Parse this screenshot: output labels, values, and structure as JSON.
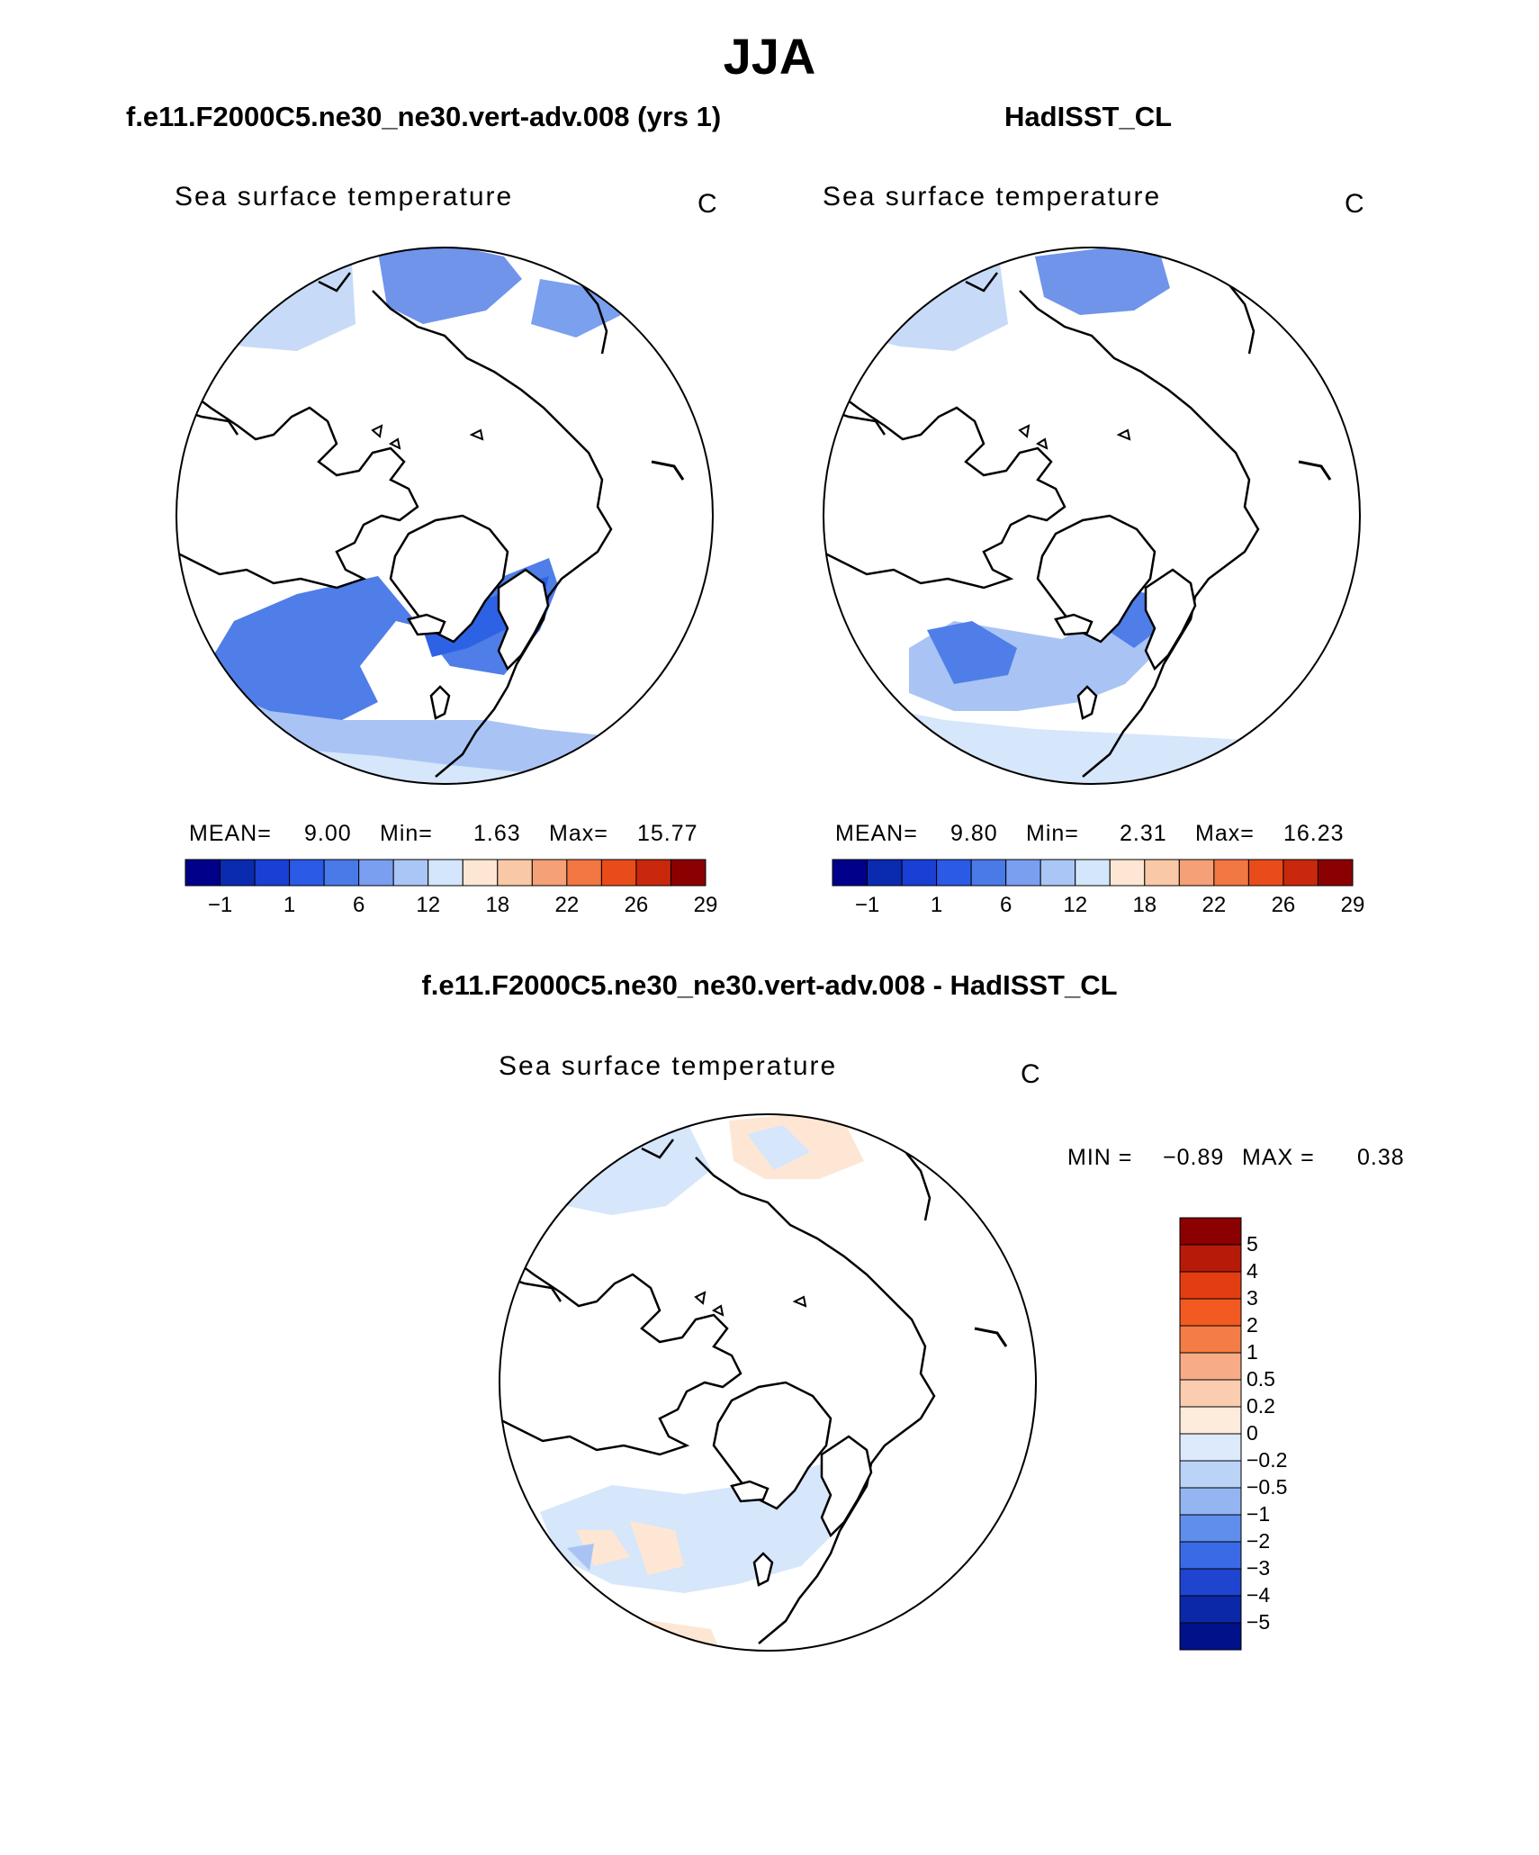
{
  "page": {
    "season": "JJA"
  },
  "panels": [
    {
      "title": "f.e11.F2000C5.ne30_ne30.vert-adv.008 (yrs 1)",
      "variable": "Sea surface temperature",
      "units": "C",
      "stats": {
        "mean_label": "MEAN=",
        "mean": "9.00",
        "min_label": "Min=",
        "min": "1.63",
        "max_label": "Max=",
        "max": "15.77"
      }
    },
    {
      "title": "HadISST_CL",
      "variable": "Sea surface temperature",
      "units": "C",
      "stats": {
        "mean_label": "MEAN=",
        "mean": "9.80",
        "min_label": "Min=",
        "min": "2.31",
        "max_label": "Max=",
        "max": "16.23"
      }
    },
    {
      "title": "f.e11.F2000C5.ne30_ne30.vert-adv.008 - HadISST_CL",
      "variable": "Sea surface temperature",
      "units": "C",
      "stats": {
        "min_label": "MIN =",
        "min": "−0.89",
        "max_label": "MAX =",
        "max": "0.38"
      }
    }
  ],
  "colorbar_top": {
    "tick_labels": [
      "−1",
      "1",
      "6",
      "12",
      "18",
      "22",
      "26",
      "29"
    ],
    "colors": [
      "#00008b",
      "#0a2bb0",
      "#1a3fd4",
      "#2a5ae6",
      "#4a7ae8",
      "#7a9ef0",
      "#aac6f6",
      "#d4e6fb",
      "#fde7d4",
      "#f9c8a6",
      "#f5a077",
      "#f27742",
      "#e94c1a",
      "#c9280d",
      "#8b0000"
    ]
  },
  "colorbar_diff": {
    "tick_labels": [
      "5",
      "4",
      "3",
      "2",
      "1",
      "0.5",
      "0.2",
      "0",
      "−0.2",
      "−0.5",
      "−1",
      "−2",
      "−3",
      "−4",
      "−5"
    ],
    "colors": [
      "#8b0000",
      "#b81a0a",
      "#e33e12",
      "#f25a22",
      "#f47c46",
      "#f7ab86",
      "#fbcdb0",
      "#fdebdc",
      "#dceafb",
      "#bcd3f8",
      "#93b6f2",
      "#5f8eec",
      "#3a6ae6",
      "#1e44d0",
      "#0a28a8",
      "#00118a"
    ]
  },
  "chart_data": [
    {
      "type": "heatmap",
      "title": "f.e11.F2000C5.ne30_ne30.vert-adv.008 (yrs 1)",
      "subtitle": "Sea surface temperature",
      "units": "C",
      "projection": "north polar stereographic",
      "mean": 9.0,
      "min": 1.63,
      "max": 15.77,
      "contour_levels": [
        -1,
        1,
        6,
        12,
        18,
        22,
        26,
        29
      ]
    },
    {
      "type": "heatmap",
      "title": "HadISST_CL",
      "subtitle": "Sea surface temperature",
      "units": "C",
      "projection": "north polar stereographic",
      "mean": 9.8,
      "min": 2.31,
      "max": 16.23,
      "contour_levels": [
        -1,
        1,
        6,
        12,
        18,
        22,
        26,
        29
      ]
    },
    {
      "type": "heatmap",
      "title": "f.e11.F2000C5.ne30_ne30.vert-adv.008 - HadISST_CL",
      "subtitle": "Sea surface temperature",
      "units": "C",
      "projection": "north polar stereographic",
      "min": -0.89,
      "max": 0.38,
      "contour_levels": [
        -5,
        -4,
        -3,
        -2,
        -1,
        -0.5,
        -0.2,
        0,
        0.2,
        0.5,
        1,
        2,
        3,
        4,
        5
      ]
    }
  ]
}
